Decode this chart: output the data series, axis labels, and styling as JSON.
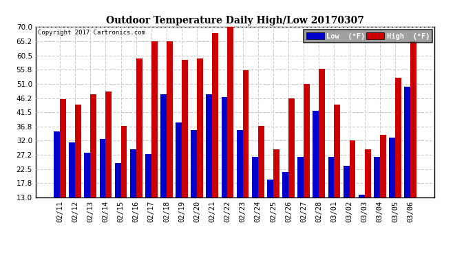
{
  "title": "Outdoor Temperature Daily High/Low 20170307",
  "copyright": "Copyright 2017 Cartronics.com",
  "legend_low": "Low  (°F)",
  "legend_high": "High  (°F)",
  "low_color": "#0000cc",
  "high_color": "#cc0000",
  "background_color": "#ffffff",
  "grid_color": "#cccccc",
  "ylim": [
    13.0,
    70.0
  ],
  "yticks": [
    13.0,
    17.8,
    22.5,
    27.2,
    32.0,
    36.8,
    41.5,
    46.2,
    51.0,
    55.8,
    60.5,
    65.2,
    70.0
  ],
  "dates": [
    "02/11",
    "02/12",
    "02/13",
    "02/14",
    "02/15",
    "02/16",
    "02/17",
    "02/18",
    "02/19",
    "02/20",
    "02/21",
    "02/22",
    "02/23",
    "02/24",
    "02/25",
    "02/26",
    "02/27",
    "02/28",
    "03/01",
    "03/02",
    "03/03",
    "03/04",
    "03/05",
    "03/06"
  ],
  "highs": [
    46.0,
    44.0,
    47.5,
    48.5,
    37.0,
    59.5,
    65.2,
    65.2,
    59.0,
    59.5,
    68.0,
    70.0,
    55.5,
    37.0,
    29.0,
    46.2,
    51.0,
    56.0,
    44.0,
    32.0,
    29.0,
    34.0,
    53.0,
    65.2
  ],
  "lows": [
    35.0,
    31.5,
    28.0,
    32.5,
    24.5,
    29.0,
    27.5,
    47.5,
    38.0,
    35.5,
    47.5,
    46.5,
    35.5,
    26.5,
    19.0,
    21.5,
    26.5,
    42.0,
    26.5,
    23.5,
    14.0,
    26.5,
    33.0,
    50.0
  ]
}
